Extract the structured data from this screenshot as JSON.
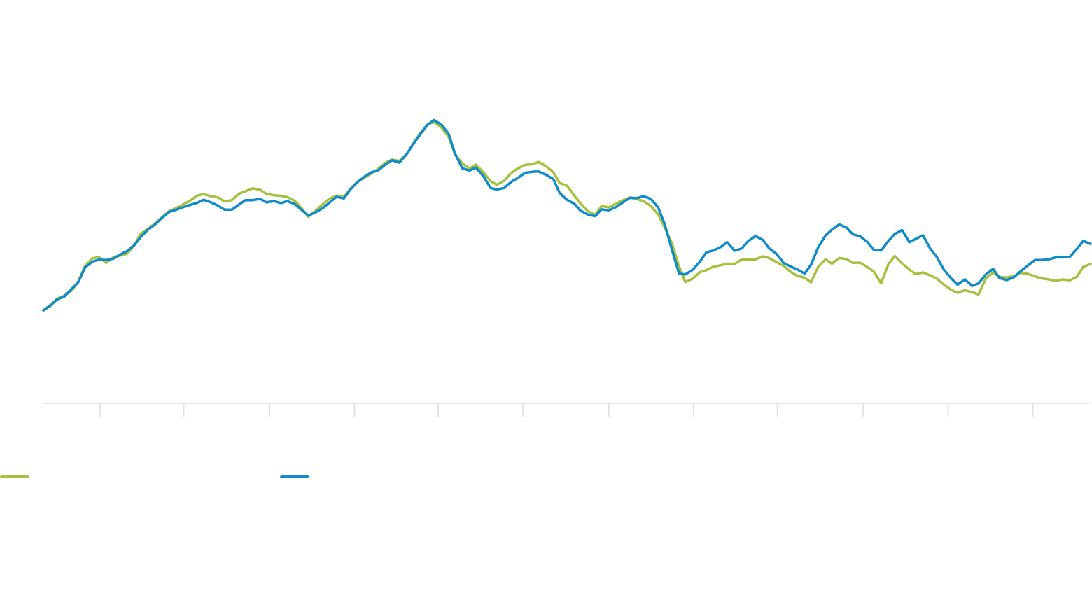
{
  "chart_data": {
    "type": "line",
    "title": "",
    "xlabel": "",
    "ylabel": "",
    "x_range": [
      0,
      100
    ],
    "ylim": [
      0,
      100
    ],
    "x_ticks": [
      5.4,
      13.4,
      21.6,
      29.7,
      37.7,
      45.8,
      54.0,
      62.1,
      70.1,
      78.3,
      86.4,
      94.5
    ],
    "grid": false,
    "legend_position": "bottom-left",
    "series": [
      {
        "name": "",
        "color": "#a5c13f",
        "points": [
          [
            0,
            27
          ],
          [
            0.7,
            28.4
          ],
          [
            1.3,
            30.5
          ],
          [
            2,
            31.5
          ],
          [
            2.7,
            33
          ],
          [
            3.3,
            35.5
          ],
          [
            4,
            40.6
          ],
          [
            4.7,
            42.8
          ],
          [
            5.3,
            43.2
          ],
          [
            6,
            41.4
          ],
          [
            6.7,
            43.2
          ],
          [
            7.3,
            43.6
          ],
          [
            8,
            44.2
          ],
          [
            8.7,
            46.8
          ],
          [
            9.3,
            50.3
          ],
          [
            10,
            51.8
          ],
          [
            10.7,
            53.5
          ],
          [
            11.3,
            55.2
          ],
          [
            12,
            57.1
          ],
          [
            12.7,
            58.1
          ],
          [
            13.3,
            59.1
          ],
          [
            14,
            60.3
          ],
          [
            14.7,
            61.9
          ],
          [
            15.3,
            62.3
          ],
          [
            16,
            61.7
          ],
          [
            16.7,
            61.3
          ],
          [
            17.3,
            60.1
          ],
          [
            18,
            60.5
          ],
          [
            18.7,
            62.5
          ],
          [
            19.3,
            63.2
          ],
          [
            20,
            64.1
          ],
          [
            20.7,
            63.6
          ],
          [
            21.3,
            62.4
          ],
          [
            22,
            62
          ],
          [
            22.7,
            61.8
          ],
          [
            23.3,
            61.4
          ],
          [
            24,
            60.3
          ],
          [
            24.7,
            57.9
          ],
          [
            25.3,
            55.4
          ],
          [
            26,
            57.3
          ],
          [
            26.7,
            59.3
          ],
          [
            27.3,
            60.9
          ],
          [
            28,
            61.9
          ],
          [
            28.7,
            61.5
          ],
          [
            29.3,
            63.8
          ],
          [
            30,
            66.1
          ],
          [
            30.7,
            67.4
          ],
          [
            31.3,
            68.5
          ],
          [
            32,
            70.1
          ],
          [
            32.7,
            71.9
          ],
          [
            33.3,
            72.8
          ],
          [
            34,
            72.4
          ],
          [
            34.7,
            74.5
          ],
          [
            35.3,
            77.6
          ],
          [
            36,
            80.9
          ],
          [
            36.7,
            83.5
          ],
          [
            37.3,
            84.2
          ],
          [
            38,
            82.6
          ],
          [
            38.7,
            79.7
          ],
          [
            39.3,
            74.5
          ],
          [
            40,
            71.7
          ],
          [
            40.7,
            70.1
          ],
          [
            41.3,
            71.3
          ],
          [
            42,
            69
          ],
          [
            42.7,
            66.3
          ],
          [
            43.3,
            65.2
          ],
          [
            44,
            66.4
          ],
          [
            44.7,
            68.8
          ],
          [
            45.3,
            70.1
          ],
          [
            46,
            71.2
          ],
          [
            46.7,
            71.4
          ],
          [
            47.3,
            72.1
          ],
          [
            48,
            70.8
          ],
          [
            48.7,
            69
          ],
          [
            49.3,
            65.7
          ],
          [
            50,
            64.9
          ],
          [
            50.7,
            61.9
          ],
          [
            51.3,
            59.5
          ],
          [
            52,
            57.1
          ],
          [
            52.7,
            56
          ],
          [
            53.3,
            58.7
          ],
          [
            54,
            58.3
          ],
          [
            54.7,
            59.4
          ],
          [
            55.3,
            60.4
          ],
          [
            56,
            61.3
          ],
          [
            56.7,
            60.8
          ],
          [
            57.3,
            60.2
          ],
          [
            58,
            58.7
          ],
          [
            58.7,
            56.2
          ],
          [
            59.3,
            52.4
          ],
          [
            60,
            47.6
          ],
          [
            60.7,
            40.3
          ],
          [
            61.3,
            35.6
          ],
          [
            62,
            36.6
          ],
          [
            62.7,
            38.6
          ],
          [
            63.3,
            39.2
          ],
          [
            64,
            40.3
          ],
          [
            64.7,
            40.7
          ],
          [
            65.3,
            41.2
          ],
          [
            66,
            41.1
          ],
          [
            66.7,
            42.5
          ],
          [
            67.3,
            42.4
          ],
          [
            68,
            42.5
          ],
          [
            68.7,
            43.4
          ],
          [
            69.3,
            42.9
          ],
          [
            70,
            41.7
          ],
          [
            70.7,
            40.5
          ],
          [
            71.3,
            38.8
          ],
          [
            72,
            37.5
          ],
          [
            72.7,
            36.9
          ],
          [
            73.3,
            35.5
          ],
          [
            74,
            40.3
          ],
          [
            74.7,
            42.5
          ],
          [
            75.3,
            41.2
          ],
          [
            76,
            42.9
          ],
          [
            76.7,
            42.6
          ],
          [
            77.3,
            41.4
          ],
          [
            78,
            41.5
          ],
          [
            78.7,
            40.1
          ],
          [
            79.3,
            38.8
          ],
          [
            80,
            35.2
          ],
          [
            80.7,
            41.1
          ],
          [
            81.3,
            43.5
          ],
          [
            82,
            41.3
          ],
          [
            82.7,
            39.4
          ],
          [
            83.3,
            38
          ],
          [
            84,
            38.5
          ],
          [
            84.7,
            37.6
          ],
          [
            85.3,
            36.7
          ],
          [
            86,
            34.8
          ],
          [
            86.7,
            33.2
          ],
          [
            87.3,
            32.3
          ],
          [
            88,
            33.1
          ],
          [
            88.7,
            32.5
          ],
          [
            89.3,
            31.8
          ],
          [
            90,
            36.7
          ],
          [
            90.7,
            38.5
          ],
          [
            91.3,
            37.2
          ],
          [
            92,
            37
          ],
          [
            92.7,
            37.4
          ],
          [
            93.3,
            38.4
          ],
          [
            94,
            38.1
          ],
          [
            94.7,
            37.3
          ],
          [
            95.3,
            36.7
          ],
          [
            96,
            36.4
          ],
          [
            96.7,
            35.9
          ],
          [
            97.3,
            36.4
          ],
          [
            98,
            36.1
          ],
          [
            98.7,
            37.2
          ],
          [
            99.3,
            40.2
          ],
          [
            100,
            41.1
          ]
        ]
      },
      {
        "name": "",
        "color": "#0f8bc9",
        "points": [
          [
            0,
            27
          ],
          [
            0.7,
            28.6
          ],
          [
            1.3,
            30.3
          ],
          [
            2,
            31.2
          ],
          [
            2.7,
            33.5
          ],
          [
            3.3,
            35.4
          ],
          [
            4,
            40.1
          ],
          [
            4.7,
            41.8
          ],
          [
            5.3,
            42.4
          ],
          [
            6,
            42.3
          ],
          [
            6.7,
            42.7
          ],
          [
            7.3,
            43.9
          ],
          [
            8,
            45
          ],
          [
            8.7,
            46.9
          ],
          [
            9.3,
            49.3
          ],
          [
            10,
            51.5
          ],
          [
            10.7,
            53.2
          ],
          [
            11.3,
            55
          ],
          [
            12,
            56.9
          ],
          [
            12.7,
            57.6
          ],
          [
            13.3,
            58.3
          ],
          [
            14,
            59
          ],
          [
            14.7,
            59.7
          ],
          [
            15.3,
            60.6
          ],
          [
            16,
            59.8
          ],
          [
            16.7,
            58.8
          ],
          [
            17.3,
            57.6
          ],
          [
            18,
            57.6
          ],
          [
            18.7,
            59.2
          ],
          [
            19.3,
            60.5
          ],
          [
            20,
            60.5
          ],
          [
            20.7,
            60.9
          ],
          [
            21.3,
            59.8
          ],
          [
            22,
            60.2
          ],
          [
            22.7,
            59.6
          ],
          [
            23.3,
            60.2
          ],
          [
            24,
            59.3
          ],
          [
            24.7,
            57.4
          ],
          [
            25.3,
            55.8
          ],
          [
            26,
            56.8
          ],
          [
            26.7,
            58.1
          ],
          [
            27.3,
            59.7
          ],
          [
            28,
            61.5
          ],
          [
            28.7,
            61
          ],
          [
            29.3,
            63.7
          ],
          [
            30,
            66
          ],
          [
            30.7,
            67.7
          ],
          [
            31.3,
            68.9
          ],
          [
            32,
            69.6
          ],
          [
            32.7,
            71.4
          ],
          [
            33.3,
            72.6
          ],
          [
            34,
            71.9
          ],
          [
            34.7,
            74.5
          ],
          [
            35.3,
            77.4
          ],
          [
            36,
            80.5
          ],
          [
            36.7,
            83.4
          ],
          [
            37.3,
            84.8
          ],
          [
            38,
            83.5
          ],
          [
            38.7,
            80.6
          ],
          [
            39.3,
            74.7
          ],
          [
            40,
            70.2
          ],
          [
            40.7,
            69.5
          ],
          [
            41.3,
            70.4
          ],
          [
            42,
            67.9
          ],
          [
            42.7,
            64.2
          ],
          [
            43.3,
            63.7
          ],
          [
            44,
            64.2
          ],
          [
            44.7,
            66.1
          ],
          [
            45.3,
            67.2
          ],
          [
            46,
            68.8
          ],
          [
            46.7,
            69.1
          ],
          [
            47.3,
            69.2
          ],
          [
            48,
            68.2
          ],
          [
            48.7,
            66.9
          ],
          [
            49.3,
            62.7
          ],
          [
            50,
            60.6
          ],
          [
            50.7,
            59.4
          ],
          [
            51.3,
            57.3
          ],
          [
            52,
            56.1
          ],
          [
            52.7,
            55.6
          ],
          [
            53.3,
            57.7
          ],
          [
            54,
            57.4
          ],
          [
            54.7,
            58.4
          ],
          [
            55.3,
            59.7
          ],
          [
            56,
            61.2
          ],
          [
            56.7,
            61.1
          ],
          [
            57.3,
            61.7
          ],
          [
            58,
            60.9
          ],
          [
            58.7,
            58.3
          ],
          [
            59.3,
            53.5
          ],
          [
            60,
            45.7
          ],
          [
            60.7,
            38.2
          ],
          [
            61.3,
            37.9
          ],
          [
            62,
            39.3
          ],
          [
            62.7,
            41.8
          ],
          [
            63.3,
            44.6
          ],
          [
            64,
            45.2
          ],
          [
            64.7,
            46.3
          ],
          [
            65.3,
            47.7
          ],
          [
            66,
            45.1
          ],
          [
            66.7,
            45.8
          ],
          [
            67.3,
            48
          ],
          [
            68,
            49.6
          ],
          [
            68.7,
            48.4
          ],
          [
            69.3,
            45.9
          ],
          [
            70,
            44.2
          ],
          [
            70.7,
            41.4
          ],
          [
            71.3,
            40.4
          ],
          [
            72,
            39.4
          ],
          [
            72.7,
            38.2
          ],
          [
            73.3,
            40.8
          ],
          [
            74,
            46.2
          ],
          [
            74.7,
            49.8
          ],
          [
            75.3,
            51.5
          ],
          [
            76,
            53.1
          ],
          [
            76.7,
            52.1
          ],
          [
            77.3,
            50.1
          ],
          [
            78,
            49.5
          ],
          [
            78.7,
            47.7
          ],
          [
            79.3,
            45.4
          ],
          [
            80,
            45.2
          ],
          [
            80.7,
            48.1
          ],
          [
            81.3,
            50.2
          ],
          [
            82,
            51.4
          ],
          [
            82.7,
            47.7
          ],
          [
            83.3,
            48.7
          ],
          [
            84,
            49.8
          ],
          [
            84.7,
            45.7
          ],
          [
            85.3,
            43.3
          ],
          [
            86,
            39.3
          ],
          [
            86.7,
            36.7
          ],
          [
            87.3,
            34.8
          ],
          [
            88,
            36.4
          ],
          [
            88.7,
            34.4
          ],
          [
            89.3,
            35.2
          ],
          [
            90,
            37.9
          ],
          [
            90.7,
            39.6
          ],
          [
            91.3,
            36.8
          ],
          [
            92,
            36.2
          ],
          [
            92.7,
            37.1
          ],
          [
            93.3,
            38.8
          ],
          [
            94,
            40.6
          ],
          [
            94.7,
            42.3
          ],
          [
            95.3,
            42.3
          ],
          [
            96,
            42.5
          ],
          [
            96.7,
            43.1
          ],
          [
            97.3,
            43.1
          ],
          [
            98,
            43.2
          ],
          [
            98.7,
            45.7
          ],
          [
            99.3,
            48.1
          ],
          [
            100,
            47.2
          ]
        ]
      }
    ]
  }
}
